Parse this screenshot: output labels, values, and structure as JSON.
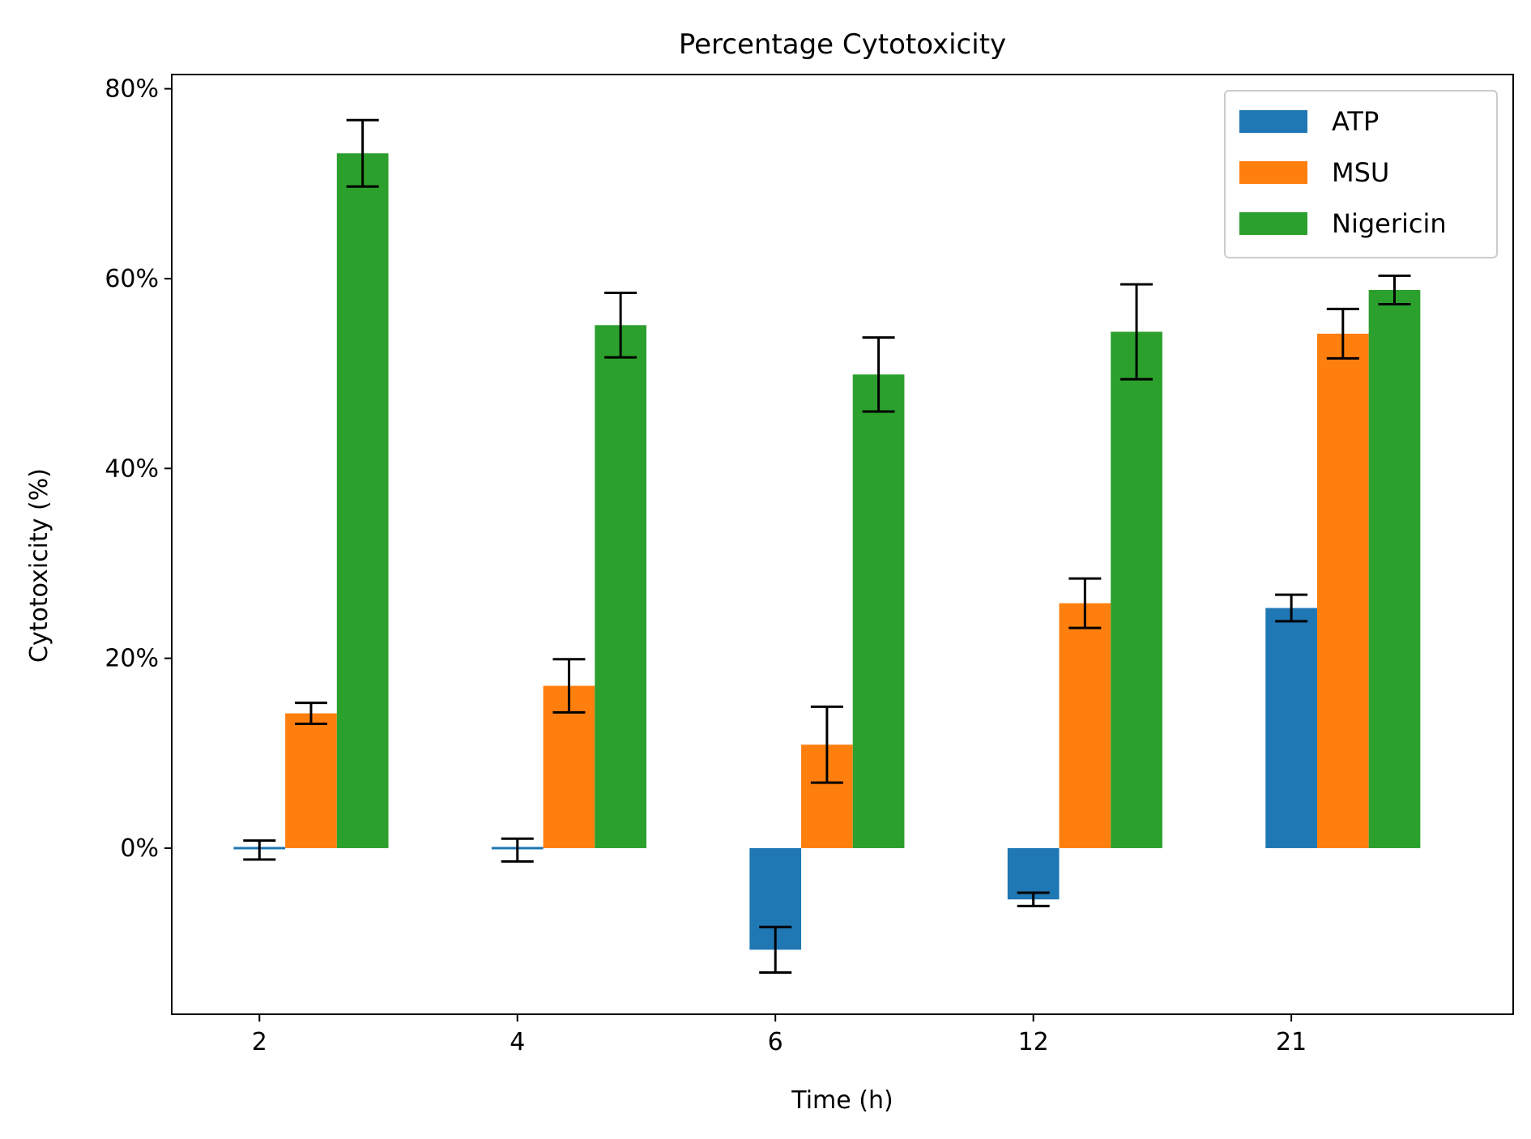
{
  "chart_data": {
    "type": "bar",
    "title": "Percentage Cytotoxicity",
    "xlabel": "Time (h)",
    "ylabel": "Cytotoxicity (%)",
    "categories": [
      "2",
      "4",
      "6",
      "12",
      "21"
    ],
    "ylim": [
      -17.5,
      81.5
    ],
    "yticks": [
      0,
      20,
      40,
      60,
      80
    ],
    "ytick_labels": [
      "0%",
      "20%",
      "40%",
      "60%",
      "80%"
    ],
    "legend_position": "top-right",
    "grid": false,
    "series": [
      {
        "name": "ATP",
        "color": "#1f77b4",
        "values": [
          -0.2,
          -0.2,
          -10.7,
          -5.4,
          25.3
        ],
        "errors": [
          1.0,
          1.2,
          2.4,
          0.7,
          1.4
        ]
      },
      {
        "name": "MSU",
        "color": "#ff7f0e",
        "values": [
          14.2,
          17.1,
          10.9,
          25.8,
          54.2
        ],
        "errors": [
          1.1,
          2.8,
          4.0,
          2.6,
          2.6
        ]
      },
      {
        "name": "Nigericin",
        "color": "#2ca02c",
        "values": [
          73.2,
          55.1,
          49.9,
          54.4,
          58.8
        ],
        "errors": [
          3.5,
          3.4,
          3.9,
          5.0,
          1.5
        ]
      }
    ]
  }
}
